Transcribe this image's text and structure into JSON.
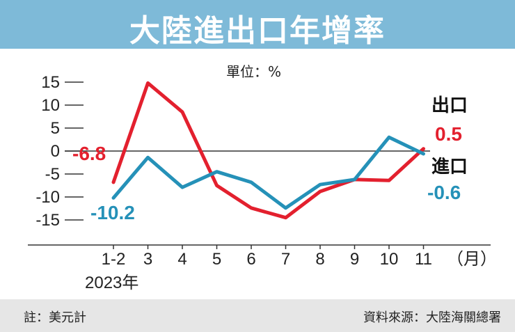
{
  "title": "大陸進出口年增率",
  "footer": {
    "note": "註：美元計",
    "source": "資料來源：大陸海關總署"
  },
  "chart_data": {
    "type": "line",
    "unit_label": "單位：%",
    "categories": [
      "1-2",
      "3",
      "4",
      "5",
      "6",
      "7",
      "8",
      "9",
      "10",
      "11"
    ],
    "x_unit": "（月）",
    "year_label": "2023年",
    "yticks": [
      "15",
      "10",
      "5",
      "0",
      "-5",
      "-10",
      "-15"
    ],
    "ylim": [
      -15,
      15
    ],
    "grid": false,
    "series": [
      {
        "name": "出口",
        "color": "#e3202e",
        "values": [
          -6.8,
          14.8,
          8.5,
          -7.5,
          -12.4,
          -14.5,
          -8.8,
          -6.2,
          -6.4,
          0.5
        ],
        "first_label": "-6.8",
        "last_label": "0.5"
      },
      {
        "name": "進口",
        "color": "#2591b8",
        "values": [
          -10.2,
          -1.4,
          -7.9,
          -4.5,
          -6.8,
          -12.4,
          -7.3,
          -6.2,
          3.0,
          -0.6
        ],
        "first_label": "-10.2",
        "last_label": "-0.6"
      }
    ]
  }
}
